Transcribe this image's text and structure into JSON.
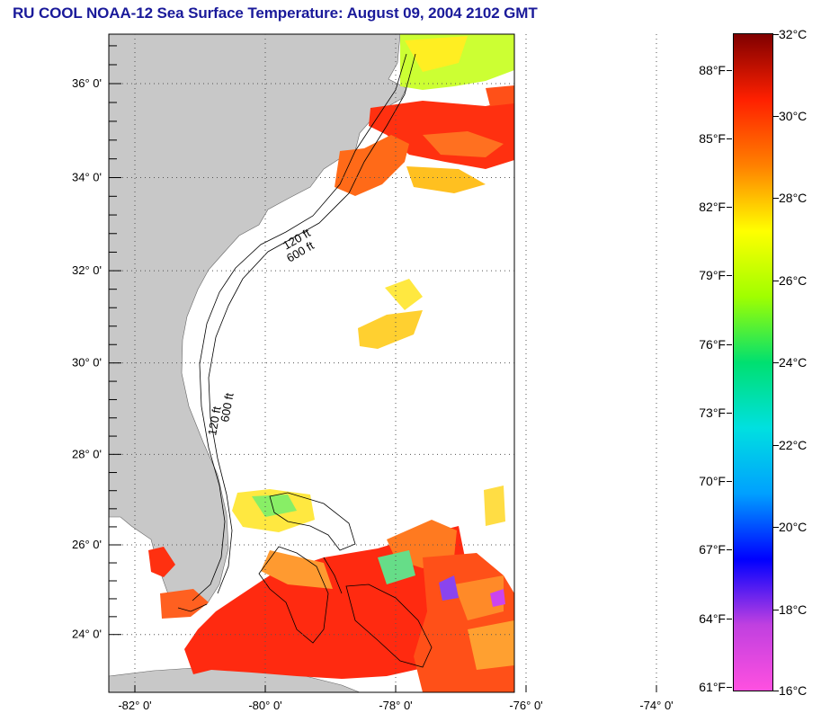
{
  "title": "RU COOL  NOAA-12  Sea Surface Temperature:  August 09, 2004 2102 GMT",
  "map": {
    "lat_labels": [
      {
        "text": "36° 0'",
        "value": 36
      },
      {
        "text": "34° 0'",
        "value": 34
      },
      {
        "text": "32° 0'",
        "value": 32
      },
      {
        "text": "30° 0'",
        "value": 30
      },
      {
        "text": "28° 0'",
        "value": 28
      },
      {
        "text": "26° 0'",
        "value": 26
      },
      {
        "text": "24° 0'",
        "value": 24
      }
    ],
    "lon_labels": [
      {
        "text": "-82° 0'",
        "value": -82
      },
      {
        "text": "-80° 0'",
        "value": -80
      },
      {
        "text": "-78° 0'",
        "value": -78
      },
      {
        "text": "-76° 0'",
        "value": -76
      },
      {
        "text": "-74° 0'",
        "value": -74
      }
    ],
    "contour_labels": [
      "120 ft",
      "600 ft",
      "120 ft",
      "600 ft"
    ],
    "colors": {
      "land": "#c8c8c8",
      "ocean": "#ffffff",
      "title": "#1a1a9a"
    }
  },
  "colorbar": {
    "fahrenheit": [
      "88°F",
      "85°F",
      "82°F",
      "79°F",
      "76°F",
      "73°F",
      "70°F",
      "67°F",
      "64°F",
      "61°F"
    ],
    "celsius": [
      "32°C",
      "30°C",
      "28°C",
      "26°C",
      "24°C",
      "22°C",
      "20°C",
      "18°C",
      "16°C"
    ],
    "f_values": [
      88,
      85,
      82,
      79,
      76,
      73,
      70,
      67,
      64,
      61
    ],
    "c_values": [
      32,
      30,
      28,
      26,
      24,
      22,
      20,
      18,
      16
    ],
    "range_c": [
      16,
      32
    ],
    "stops": [
      "#ff50e0",
      "#c040e0",
      "#0000ff",
      "#00a0ff",
      "#00e0e0",
      "#00e070",
      "#a0ff00",
      "#ffff00",
      "#ff8000",
      "#ff2000",
      "#800000"
    ]
  }
}
